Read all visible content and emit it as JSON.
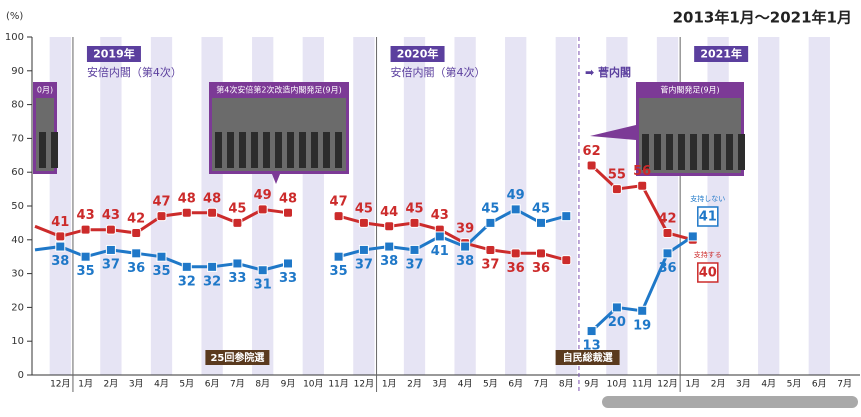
{
  "chart_data": {
    "type": "line",
    "title": "2013年1月～2021年1月",
    "y_unit": "(%)",
    "categories": [
      null,
      "12月",
      "1月",
      "2月",
      "3月",
      "4月",
      "5月",
      "6月",
      "7月",
      "8月",
      "9月",
      "10月",
      "11月",
      "12月",
      "1月",
      "2月",
      "3月",
      "4月",
      "5月",
      "6月",
      "7月",
      "8月",
      "9月",
      "10月",
      "11月",
      "12月",
      "1月",
      "2月",
      "3月",
      "4月",
      "5月",
      "6月",
      "7月"
    ],
    "ylim": [
      0,
      100
    ],
    "yticks": [
      0,
      10,
      20,
      30,
      40,
      50,
      60,
      70,
      80,
      90,
      100
    ],
    "series": [
      {
        "color": "#cc2b2b",
        "values": [
          44,
          41,
          43,
          43,
          42,
          47,
          48,
          48,
          45,
          49,
          48,
          null,
          47,
          45,
          44,
          45,
          43,
          39,
          37,
          36,
          36,
          34,
          null,
          null,
          null,
          null,
          null,
          null,
          null,
          null,
          null,
          null,
          null
        ]
      },
      {
        "color": "#cc2b2b",
        "values": [
          null,
          null,
          null,
          null,
          null,
          null,
          null,
          null,
          null,
          null,
          null,
          null,
          null,
          null,
          null,
          null,
          null,
          null,
          null,
          null,
          null,
          null,
          62,
          55,
          56,
          42,
          40,
          null,
          null,
          null,
          null,
          null,
          null
        ]
      },
      {
        "color": "#1f78c8",
        "values": [
          37,
          38,
          35,
          37,
          36,
          35,
          32,
          32,
          33,
          31,
          33,
          null,
          35,
          37,
          38,
          37,
          41,
          38,
          45,
          49,
          45,
          47,
          null,
          null,
          null,
          null,
          null,
          null,
          null,
          null,
          null,
          null,
          null
        ]
      },
      {
        "color": "#1f78c8",
        "values": [
          null,
          null,
          null,
          null,
          null,
          null,
          null,
          null,
          null,
          null,
          null,
          null,
          null,
          null,
          null,
          null,
          null,
          null,
          null,
          null,
          null,
          null,
          13,
          20,
          19,
          36,
          41,
          null,
          null,
          null,
          null,
          null,
          null
        ]
      }
    ],
    "end_labels": [
      {
        "text": "支持しない",
        "series": 3
      },
      {
        "text": "支持する",
        "series": 1
      }
    ],
    "year_badges": [
      "2019年",
      "2020年",
      "2021年"
    ],
    "cabinets": [
      "安倍内閣（第4次）",
      "安倍内閣（第4次）",
      "➡ 菅内閣"
    ],
    "photo_captions": [
      "0月)",
      "第4次安倍第2次改造内閣発足(9月)",
      "菅内閣発足(9月)"
    ],
    "events": [
      "25回参院選",
      "自民総裁選"
    ]
  }
}
